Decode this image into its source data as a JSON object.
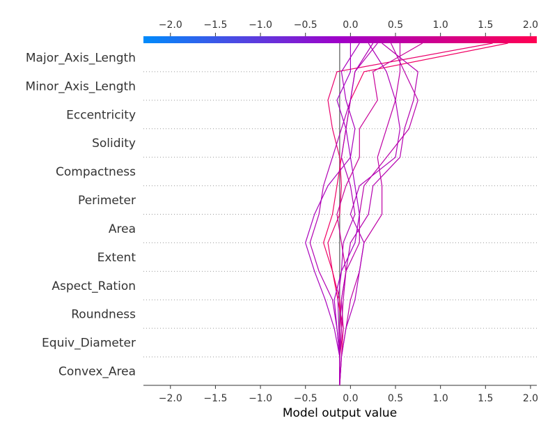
{
  "chart_data": {
    "type": "decision_plot",
    "xlabel": "Model output value",
    "xlim": [
      -2.3,
      2.07
    ],
    "xticks": [
      "−2.0",
      "−1.5",
      "−1.0",
      "−0.5",
      "0.0",
      "0.5",
      "1.0",
      "1.5",
      "2.0"
    ],
    "xtick_values": [
      -2.0,
      -1.5,
      -1.0,
      -0.5,
      0.0,
      0.5,
      1.0,
      1.5,
      2.0
    ],
    "base_value": -0.12,
    "features": [
      "Major_Axis_Length",
      "Minor_Axis_Length",
      "Eccentricity",
      "Solidity",
      "Compactness",
      "Perimeter",
      "Area",
      "Extent",
      "Aspect_Ration",
      "Roundness",
      "Equiv_Diameter",
      "Convex_Area"
    ],
    "colormap": {
      "low": "#008bfb",
      "mid": "#a000c8",
      "high": "#ff0052"
    },
    "grid": true,
    "series": [
      {
        "final": 1.58,
        "path": [
          -0.12,
          -0.12,
          -0.1,
          -0.12,
          -0.2,
          -0.25,
          -0.12,
          -0.1,
          -0.12,
          -0.2,
          -0.25,
          -0.15,
          1.58
        ]
      },
      {
        "final": 1.75,
        "path": [
          -0.12,
          -0.1,
          -0.08,
          -0.14,
          -0.2,
          -0.3,
          -0.2,
          -0.15,
          -0.1,
          -0.05,
          0.0,
          0.15,
          1.75
        ]
      },
      {
        "final": 0.8,
        "path": [
          -0.12,
          -0.12,
          -0.08,
          -0.1,
          -0.05,
          -0.1,
          -0.15,
          -0.05,
          0.1,
          0.1,
          0.3,
          0.25,
          0.8
        ]
      },
      {
        "final": 0.3,
        "path": [
          -0.12,
          -0.12,
          -0.15,
          -0.2,
          -0.35,
          -0.45,
          -0.35,
          -0.3,
          -0.2,
          -0.1,
          0.0,
          0.05,
          0.3
        ]
      },
      {
        "final": 0.55,
        "path": [
          -0.12,
          -0.1,
          -0.05,
          0.0,
          0.1,
          0.15,
          0.35,
          0.35,
          0.3,
          0.4,
          0.5,
          0.55,
          0.55
        ]
      },
      {
        "final": 0.1,
        "path": [
          -0.12,
          -0.12,
          -0.18,
          -0.28,
          -0.4,
          -0.5,
          -0.4,
          -0.25,
          0.0,
          0.05,
          -0.05,
          -0.1,
          0.1
        ]
      },
      {
        "final": 0.2,
        "path": [
          -0.12,
          -0.1,
          -0.05,
          0.05,
          0.1,
          0.15,
          0.0,
          0.1,
          0.5,
          0.55,
          0.5,
          0.4,
          0.2
        ]
      },
      {
        "final": 0.35,
        "path": [
          -0.12,
          -0.12,
          -0.12,
          -0.1,
          -0.05,
          0.0,
          0.2,
          0.25,
          0.55,
          0.6,
          0.7,
          0.75,
          0.35
        ]
      },
      {
        "final": 0.45,
        "path": [
          -0.12,
          -0.12,
          -0.1,
          -0.08,
          -0.05,
          0.1,
          0.1,
          0.15,
          0.4,
          0.65,
          0.75,
          0.6,
          0.45
        ]
      },
      {
        "final": 0.0,
        "path": [
          -0.12,
          -0.12,
          -0.15,
          -0.18,
          -0.1,
          0.05,
          0.1,
          0.05,
          0.0,
          -0.05,
          -0.15,
          0.0,
          0.0
        ]
      },
      {
        "final": 0.25,
        "path": [
          -0.12,
          -0.12,
          -0.13,
          -0.14,
          -0.1,
          -0.08,
          0.05,
          0.0,
          -0.1,
          -0.05,
          0.0,
          0.05,
          0.25
        ]
      }
    ]
  }
}
